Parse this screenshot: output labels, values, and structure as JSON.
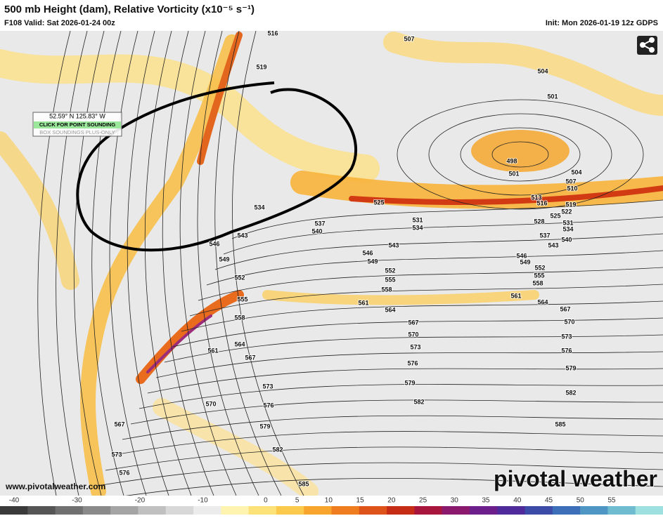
{
  "header": {
    "title": "500 mb Height (dam), Relative Vorticity (x10⁻⁵ s⁻¹)",
    "valid": "F108 Valid: Sat 2026-01-24 00z",
    "init": "Init: Mon 2026-01-19 12z GDPS"
  },
  "tooltip": {
    "coords": "52.59° N 125.83° W",
    "button": "CLICK FOR POINT SOUNDING",
    "note": "BOX SOUNDINGS PLUS-ONLY"
  },
  "contour_labels": [
    516,
    519,
    507,
    504,
    501,
    498,
    501,
    504,
    507,
    510,
    513,
    516,
    519,
    522,
    525,
    525,
    528,
    531,
    534,
    531,
    534,
    537,
    540,
    534,
    543,
    546,
    537,
    540,
    543,
    546,
    549,
    552,
    555,
    558,
    561,
    564,
    567,
    570,
    573,
    576,
    579,
    582,
    585,
    543,
    546,
    549,
    552,
    555,
    558,
    561,
    564,
    567,
    570,
    573,
    576,
    579,
    582,
    549,
    552,
    555,
    558,
    561,
    564,
    567,
    573,
    576,
    579,
    582,
    585,
    570,
    567,
    573,
    576
  ],
  "colorbar": {
    "ticks": [
      -40,
      -30,
      -20,
      -10,
      0,
      5,
      10,
      15,
      20,
      25,
      30,
      35,
      40,
      45,
      50,
      55
    ]
  },
  "footer": {
    "url": "www.pivotalweather.com",
    "brand": "pivotal weather"
  }
}
